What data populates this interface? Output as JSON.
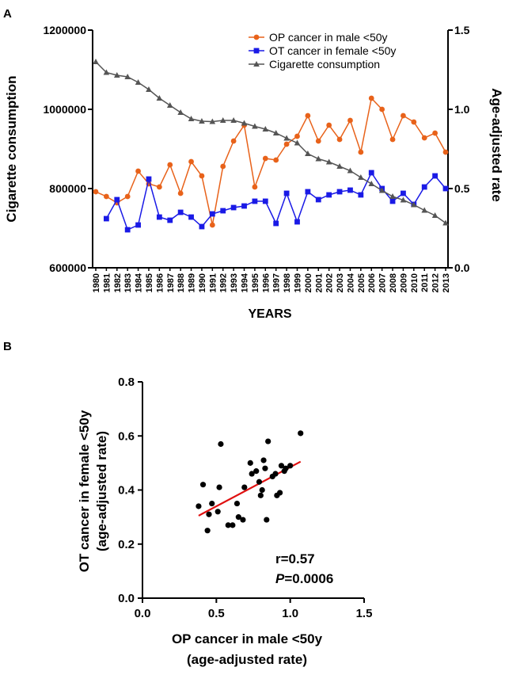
{
  "panel_labels": {
    "a": "A",
    "b": "B"
  },
  "colors": {
    "op": "#e8621a",
    "ot": "#1a1ae6",
    "cig": "#555555",
    "fit": "#e01010",
    "axis": "#000000",
    "dot": "#000000"
  },
  "chart_data": [
    {
      "id": "A",
      "type": "line",
      "xlabel": "YEARS",
      "ylabel_left": "Cigarette consumption",
      "ylabel_right": "Age-adjusted rate",
      "ylim_left": [
        600000,
        1200000
      ],
      "yticks_left": [
        "600000",
        "800000",
        "1000000",
        "1200000"
      ],
      "yticks_left_values": [
        600000,
        800000,
        1000000,
        1200000
      ],
      "ylim_right": [
        0.0,
        1.5
      ],
      "yticks_right": [
        "0.0",
        "0.5",
        "1.0",
        "1.5"
      ],
      "yticks_right_values": [
        0.0,
        0.5,
        1.0,
        1.5
      ],
      "x": [
        "1980",
        "1981",
        "1982",
        "1983",
        "1984",
        "1985",
        "1986",
        "1987",
        "1988",
        "1989",
        "1990",
        "1991",
        "1992",
        "1993",
        "1994",
        "1995",
        "1996",
        "1997",
        "1998",
        "1999",
        "2000",
        "2001",
        "2002",
        "2003",
        "2004",
        "2005",
        "2006",
        "2007",
        "2008",
        "2009",
        "2010",
        "2011",
        "2012",
        "2013"
      ],
      "legend": [
        "OP cancer in male <50y",
        "OT cancer in female <50y",
        "Cigarette consumption"
      ],
      "legend_position": "top-right",
      "series": [
        {
          "name": "OP cancer in male <50y",
          "axis": "right",
          "marker": "circle",
          "values": [
            0.48,
            0.45,
            0.41,
            0.45,
            0.61,
            0.53,
            0.51,
            0.65,
            0.47,
            0.67,
            0.58,
            0.27,
            0.64,
            0.8,
            0.9,
            0.51,
            0.69,
            0.68,
            0.78,
            0.83,
            0.96,
            0.8,
            0.9,
            0.81,
            0.93,
            0.73,
            1.07,
            1.0,
            0.81,
            0.96,
            0.92,
            0.82,
            0.85,
            0.73
          ]
        },
        {
          "name": "OT cancer in female <50y",
          "axis": "right",
          "marker": "square",
          "values": [
            null,
            0.31,
            0.43,
            0.24,
            0.27,
            0.56,
            0.32,
            0.3,
            0.35,
            0.32,
            0.26,
            0.34,
            0.36,
            0.38,
            0.39,
            0.42,
            0.42,
            0.28,
            0.47,
            0.29,
            0.48,
            0.43,
            0.46,
            0.48,
            0.49,
            0.46,
            0.6,
            0.5,
            0.42,
            0.47,
            0.4,
            0.51,
            0.58,
            0.5
          ]
        },
        {
          "name": "Cigarette consumption",
          "axis": "left",
          "marker": "triangle",
          "values": [
            1120000,
            1093000,
            1086000,
            1082000,
            1068000,
            1050000,
            1028000,
            1010000,
            992000,
            976000,
            970000,
            969000,
            972000,
            972000,
            965000,
            957000,
            950000,
            940000,
            927000,
            915000,
            888000,
            875000,
            867000,
            856000,
            845000,
            828000,
            812000,
            795000,
            780000,
            771000,
            759000,
            745000,
            732000,
            713000
          ]
        }
      ]
    },
    {
      "id": "B",
      "type": "scatter",
      "xlabel_line1": "OP cancer in male <50y",
      "xlabel_line2": "(age-adjusted rate)",
      "ylabel_line1": "OT cancer in female <50y",
      "ylabel_line2": "(age-adjusted rate)",
      "xlim": [
        0.0,
        1.5
      ],
      "ylim": [
        0.0,
        0.8
      ],
      "xticks": [
        "0.0",
        "0.5",
        "1.0",
        "1.5"
      ],
      "xticks_values": [
        0.0,
        0.5,
        1.0,
        1.5
      ],
      "yticks": [
        "0.0",
        "0.2",
        "0.4",
        "0.6",
        "0.8"
      ],
      "yticks_values": [
        0.0,
        0.2,
        0.4,
        0.6,
        0.8
      ],
      "points": [
        [
          0.38,
          0.34
        ],
        [
          0.41,
          0.42
        ],
        [
          0.44,
          0.25
        ],
        [
          0.45,
          0.31
        ],
        [
          0.47,
          0.35
        ],
        [
          0.51,
          0.32
        ],
        [
          0.52,
          0.41
        ],
        [
          0.53,
          0.57
        ],
        [
          0.58,
          0.27
        ],
        [
          0.61,
          0.27
        ],
        [
          0.64,
          0.35
        ],
        [
          0.65,
          0.3
        ],
        [
          0.68,
          0.29
        ],
        [
          0.69,
          0.41
        ],
        [
          0.73,
          0.5
        ],
        [
          0.74,
          0.46
        ],
        [
          0.77,
          0.47
        ],
        [
          0.79,
          0.43
        ],
        [
          0.8,
          0.38
        ],
        [
          0.81,
          0.4
        ],
        [
          0.82,
          0.51
        ],
        [
          0.83,
          0.48
        ],
        [
          0.84,
          0.29
        ],
        [
          0.85,
          0.58
        ],
        [
          0.88,
          0.45
        ],
        [
          0.9,
          0.46
        ],
        [
          0.91,
          0.38
        ],
        [
          0.93,
          0.39
        ],
        [
          0.94,
          0.49
        ],
        [
          0.96,
          0.47
        ],
        [
          0.97,
          0.48
        ],
        [
          1.0,
          0.49
        ],
        [
          1.07,
          0.61
        ]
      ],
      "fit_line": {
        "x": [
          0.38,
          1.07
        ],
        "y": [
          0.305,
          0.505
        ]
      },
      "annotation_r": "r=0.57",
      "annotation_p_symbol": "P",
      "annotation_p_value": "=0.0006"
    }
  ]
}
